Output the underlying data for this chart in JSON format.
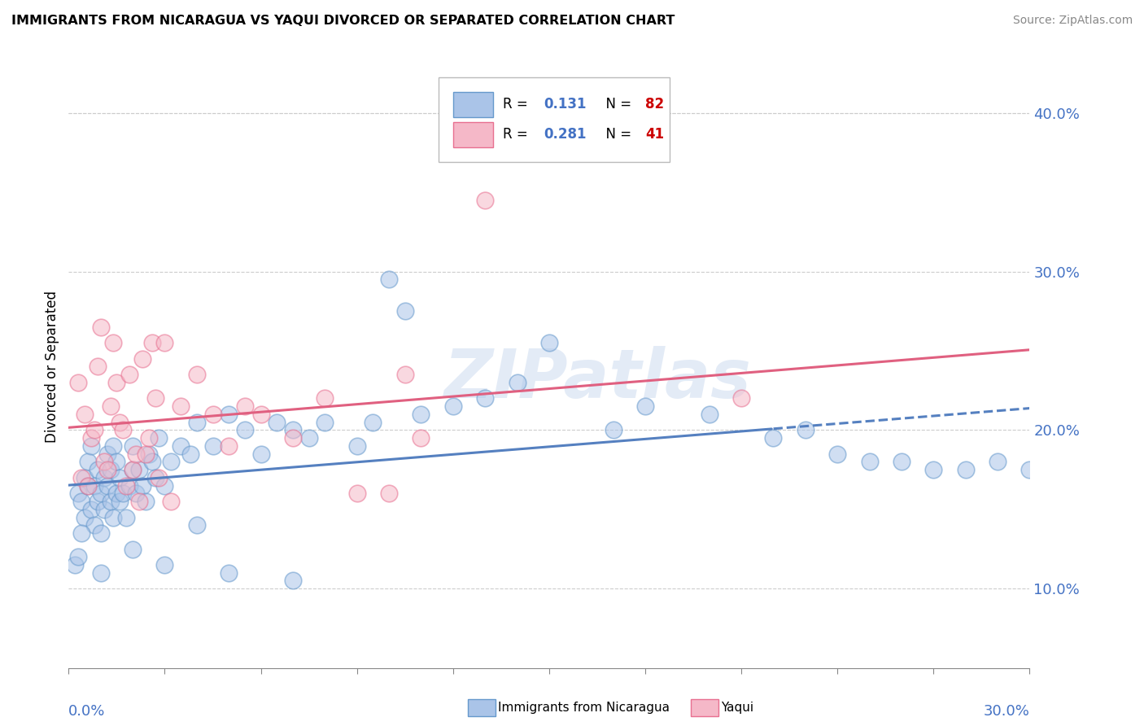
{
  "title": "IMMIGRANTS FROM NICARAGUA VS YAQUI DIVORCED OR SEPARATED CORRELATION CHART",
  "source": "Source: ZipAtlas.com",
  "ylabel": "Divorced or Separated",
  "xlim": [
    0.0,
    30.0
  ],
  "ylim": [
    5.0,
    43.0
  ],
  "yticks": [
    10.0,
    20.0,
    30.0,
    40.0
  ],
  "blue_color": "#aac4e8",
  "pink_color": "#f5b8c8",
  "blue_edge": "#6699cc",
  "pink_edge": "#e87090",
  "blue_line": "#5580c0",
  "pink_line": "#e06080",
  "text_color": "#4472c4",
  "red_color": "#cc0000",
  "watermark": "ZIPatlas",
  "blue_x": [
    0.3,
    0.4,
    0.5,
    0.5,
    0.6,
    0.6,
    0.7,
    0.7,
    0.8,
    0.8,
    0.9,
    0.9,
    1.0,
    1.0,
    1.1,
    1.1,
    1.2,
    1.2,
    1.3,
    1.3,
    1.4,
    1.4,
    1.5,
    1.5,
    1.6,
    1.6,
    1.7,
    1.8,
    1.9,
    2.0,
    2.0,
    2.1,
    2.2,
    2.3,
    2.4,
    2.5,
    2.6,
    2.7,
    2.8,
    3.0,
    3.2,
    3.5,
    3.8,
    4.0,
    4.5,
    5.0,
    5.5,
    6.0,
    6.5,
    7.0,
    7.5,
    8.0,
    9.0,
    9.5,
    10.0,
    10.5,
    11.0,
    12.0,
    13.0,
    14.0,
    15.0,
    17.0,
    18.0,
    20.0,
    22.0,
    23.0,
    24.0,
    25.0,
    26.0,
    27.0,
    28.0,
    29.0,
    30.0,
    0.2,
    0.3,
    0.4,
    1.0,
    2.0,
    3.0,
    4.0,
    5.0,
    7.0
  ],
  "blue_y": [
    16.0,
    15.5,
    14.5,
    17.0,
    16.5,
    18.0,
    15.0,
    19.0,
    14.0,
    16.5,
    15.5,
    17.5,
    13.5,
    16.0,
    15.0,
    17.0,
    16.5,
    18.5,
    15.5,
    17.5,
    14.5,
    19.0,
    16.0,
    18.0,
    15.5,
    17.0,
    16.0,
    14.5,
    16.5,
    17.5,
    19.0,
    16.0,
    17.5,
    16.5,
    15.5,
    18.5,
    18.0,
    17.0,
    19.5,
    16.5,
    18.0,
    19.0,
    18.5,
    20.5,
    19.0,
    21.0,
    20.0,
    18.5,
    20.5,
    20.0,
    19.5,
    20.5,
    19.0,
    20.5,
    29.5,
    27.5,
    21.0,
    21.5,
    22.0,
    23.0,
    25.5,
    20.0,
    21.5,
    21.0,
    19.5,
    20.0,
    18.5,
    18.0,
    18.0,
    17.5,
    17.5,
    18.0,
    17.5,
    11.5,
    12.0,
    13.5,
    11.0,
    12.5,
    11.5,
    14.0,
    11.0,
    10.5
  ],
  "pink_x": [
    0.3,
    0.4,
    0.5,
    0.6,
    0.7,
    0.8,
    0.9,
    1.0,
    1.1,
    1.2,
    1.3,
    1.4,
    1.5,
    1.6,
    1.7,
    1.8,
    1.9,
    2.0,
    2.1,
    2.2,
    2.3,
    2.4,
    2.5,
    2.6,
    2.7,
    2.8,
    3.0,
    3.2,
    3.5,
    4.0,
    4.5,
    5.0,
    5.5,
    6.0,
    7.0,
    8.0,
    9.0,
    10.0,
    10.5,
    11.0,
    13.0,
    21.0
  ],
  "pink_y": [
    23.0,
    17.0,
    21.0,
    16.5,
    19.5,
    20.0,
    24.0,
    26.5,
    18.0,
    17.5,
    21.5,
    25.5,
    23.0,
    20.5,
    20.0,
    16.5,
    23.5,
    17.5,
    18.5,
    15.5,
    24.5,
    18.5,
    19.5,
    25.5,
    22.0,
    17.0,
    25.5,
    15.5,
    21.5,
    23.5,
    21.0,
    19.0,
    21.5,
    21.0,
    19.5,
    22.0,
    16.0,
    16.0,
    23.5,
    19.5,
    34.5,
    22.0
  ]
}
